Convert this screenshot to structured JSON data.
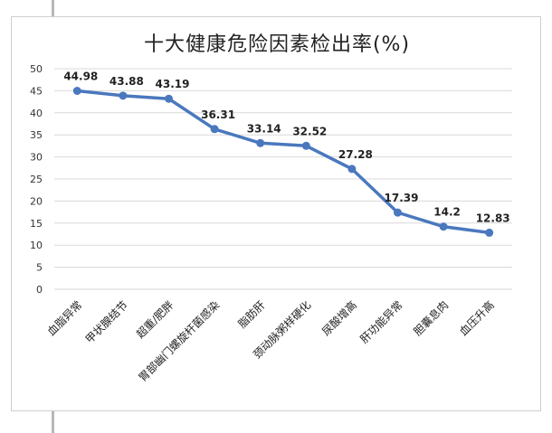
{
  "chart_data": {
    "type": "line",
    "title": "十大健康危险因素检出率(%)",
    "categories": [
      "血脂异常",
      "甲状腺结节",
      "超重/肥胖",
      "胃部幽门螺旋杆菌感染",
      "脂肪肝",
      "颈动脉粥样硬化",
      "尿酸增高",
      "肝功能异常",
      "胆囊息肉",
      "血压升高"
    ],
    "values": [
      44.98,
      43.88,
      43.19,
      36.31,
      33.14,
      32.52,
      27.28,
      17.39,
      14.2,
      12.83
    ],
    "data_labels": [
      "44.98",
      "43.88",
      "43.19",
      "36.31",
      "33.14",
      "32.52",
      "27.28",
      "17.39",
      "14.2",
      "12.83"
    ],
    "y_ticks": [
      "0",
      "5",
      "10",
      "15",
      "20",
      "25",
      "30",
      "35",
      "40",
      "45",
      "50"
    ],
    "ylim": [
      0,
      50
    ],
    "grid": true,
    "legend": "none",
    "colors": {
      "line": "#4a78be",
      "grid": "#d9d9d9"
    }
  }
}
